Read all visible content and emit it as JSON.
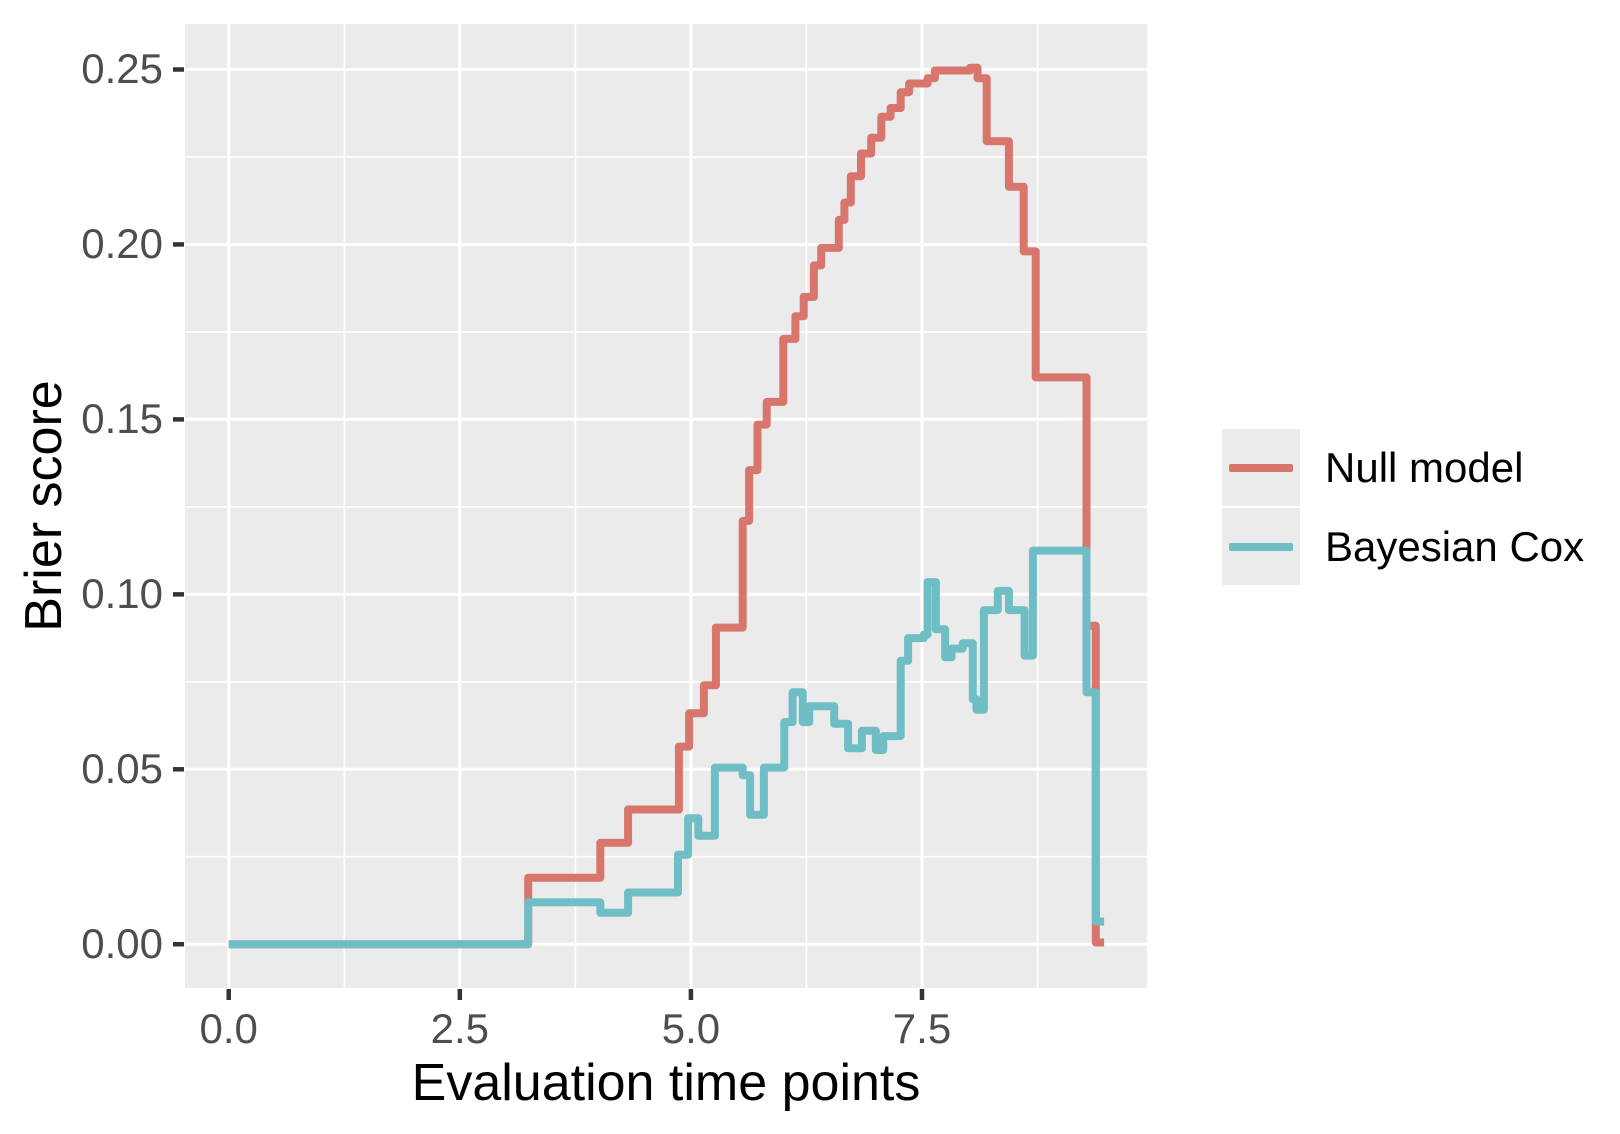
{
  "figure": {
    "page_background": "#FFFFFF",
    "panel_background": "#EBEBEB",
    "grid_color": "#FFFFFF",
    "axis_tick_color": "#333333",
    "tick_label_color": "#4D4D4D",
    "text_color": "#000000"
  },
  "axes": {
    "x_title": "Evaluation time points",
    "y_title": "Brier score"
  },
  "chart_data": {
    "type": "line",
    "mode": "step-after",
    "title": "",
    "xlabel": "Evaluation time points",
    "ylabel": "Brier score",
    "xlim": [
      -0.473,
      9.934
    ],
    "ylim": [
      -0.0125,
      0.263
    ],
    "x_ticks": [
      0.0,
      2.5,
      5.0,
      7.5
    ],
    "x_tick_labels": [
      "0.0",
      "2.5",
      "5.0",
      "7.5"
    ],
    "y_ticks": [
      0.0,
      0.05,
      0.1,
      0.15,
      0.2,
      0.25
    ],
    "y_tick_labels": [
      "0.00",
      "0.05",
      "0.10",
      "0.15",
      "0.20",
      "0.25"
    ],
    "x_minor_ticks": [
      1.25,
      3.75,
      6.25,
      8.75
    ],
    "y_minor_ticks": [
      0.025,
      0.075,
      0.125,
      0.175,
      0.225
    ],
    "grid": true,
    "legend_position": "right",
    "series": [
      {
        "name": "Null model",
        "color": "#D8766D",
        "x_end": 9.47,
        "step_points": [
          [
            0,
            0
          ],
          [
            3.24,
            0.019
          ],
          [
            4.02,
            0.029
          ],
          [
            4.32,
            0.0385
          ],
          [
            4.87,
            0.0565
          ],
          [
            4.98,
            0.066
          ],
          [
            5.14,
            0.074
          ],
          [
            5.27,
            0.0905
          ],
          [
            5.56,
            0.121
          ],
          [
            5.63,
            0.1355
          ],
          [
            5.72,
            0.1485
          ],
          [
            5.82,
            0.155
          ],
          [
            6.0,
            0.173
          ],
          [
            6.13,
            0.1795
          ],
          [
            6.22,
            0.185
          ],
          [
            6.33,
            0.194
          ],
          [
            6.41,
            0.199
          ],
          [
            6.6,
            0.207
          ],
          [
            6.66,
            0.212
          ],
          [
            6.73,
            0.2195
          ],
          [
            6.84,
            0.226
          ],
          [
            6.95,
            0.2305
          ],
          [
            7.06,
            0.2365
          ],
          [
            7.16,
            0.239
          ],
          [
            7.27,
            0.2435
          ],
          [
            7.36,
            0.246
          ],
          [
            7.56,
            0.2475
          ],
          [
            7.64,
            0.2497
          ],
          [
            8.02,
            0.2505
          ],
          [
            8.1,
            0.2475
          ],
          [
            8.2,
            0.2295
          ],
          [
            8.44,
            0.2165
          ],
          [
            8.6,
            0.198
          ],
          [
            8.73,
            0.162
          ],
          [
            9.28,
            0.091
          ],
          [
            9.38,
            0.0005
          ]
        ]
      },
      {
        "name": "Bayesian Cox",
        "color": "#6FBEC6",
        "x_end": 9.47,
        "step_points": [
          [
            0,
            0
          ],
          [
            3.24,
            0.012
          ],
          [
            4.02,
            0.009
          ],
          [
            4.32,
            0.0148
          ],
          [
            4.86,
            0.0256
          ],
          [
            4.97,
            0.036
          ],
          [
            5.08,
            0.031
          ],
          [
            5.26,
            0.0505
          ],
          [
            5.56,
            0.0483
          ],
          [
            5.64,
            0.037
          ],
          [
            5.79,
            0.0505
          ],
          [
            6.01,
            0.0635
          ],
          [
            6.1,
            0.072
          ],
          [
            6.21,
            0.0635
          ],
          [
            6.28,
            0.068
          ],
          [
            6.55,
            0.063
          ],
          [
            6.7,
            0.056
          ],
          [
            6.85,
            0.061
          ],
          [
            7.0,
            0.0555
          ],
          [
            7.08,
            0.0595
          ],
          [
            7.27,
            0.081
          ],
          [
            7.35,
            0.0875
          ],
          [
            7.52,
            0.0885
          ],
          [
            7.56,
            0.1035
          ],
          [
            7.65,
            0.09
          ],
          [
            7.75,
            0.082
          ],
          [
            7.82,
            0.0845
          ],
          [
            7.94,
            0.086
          ],
          [
            8.05,
            0.07
          ],
          [
            8.09,
            0.067
          ],
          [
            8.17,
            0.0955
          ],
          [
            8.32,
            0.101
          ],
          [
            8.44,
            0.0955
          ],
          [
            8.61,
            0.0825
          ],
          [
            8.7,
            0.1125
          ],
          [
            9.28,
            0.072
          ],
          [
            9.38,
            0.0065
          ]
        ]
      }
    ]
  },
  "legend": {
    "items": [
      {
        "label": "Null model",
        "color": "#D8766D"
      },
      {
        "label": "Bayesian Cox",
        "color": "#6FBEC6"
      }
    ]
  }
}
